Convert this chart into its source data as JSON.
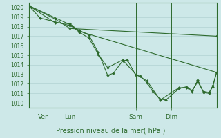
{
  "background_color": "#cde8e8",
  "grid_color": "#aacccc",
  "line_color": "#2d6a2d",
  "title": "Pression niveau de la mer( hPa )",
  "x_ticks_labels": [
    "Ven",
    "Lun",
    "Sam",
    "Dim"
  ],
  "x_ticks_pos": [
    0.08,
    0.22,
    0.57,
    0.76
  ],
  "ylim": [
    1009.5,
    1020.5
  ],
  "yticks": [
    1010,
    1011,
    1012,
    1013,
    1014,
    1015,
    1016,
    1017,
    1018,
    1019,
    1020
  ],
  "series": [
    {
      "x": [
        0.0,
        0.06,
        0.22,
        0.27,
        0.32,
        0.37,
        0.42,
        0.45,
        0.5,
        0.525,
        0.57,
        0.595,
        0.63,
        0.66,
        0.7,
        0.73,
        0.8,
        0.84,
        0.87,
        0.9,
        0.93,
        0.96,
        0.98,
        1.0
      ],
      "y": [
        1020.2,
        1018.9,
        1018.1,
        1017.6,
        1017.1,
        1015.3,
        1012.9,
        1013.1,
        1014.4,
        1014.5,
        1012.9,
        1012.8,
        1012.1,
        1011.2,
        1010.4,
        1010.3,
        1011.5,
        1011.7,
        1011.3,
        1012.2,
        1011.2,
        1011.1,
        1011.7,
        1013.2
      ]
    },
    {
      "x": [
        0.0,
        0.22,
        0.27,
        0.32,
        0.37,
        0.42,
        0.5,
        0.57,
        0.63,
        0.7,
        0.8,
        0.84,
        0.87,
        0.9,
        0.93,
        0.96,
        0.98,
        1.0
      ],
      "y": [
        1020.2,
        1018.2,
        1017.4,
        1016.8,
        1015.1,
        1013.7,
        1014.5,
        1013.0,
        1012.3,
        1010.3,
        1011.6,
        1011.6,
        1011.2,
        1012.4,
        1011.1,
        1011.0,
        1011.8,
        1013.2
      ]
    },
    {
      "x": [
        0.0,
        0.14,
        0.22,
        0.27,
        1.0
      ],
      "y": [
        1020.2,
        1018.4,
        1018.3,
        1017.5,
        1013.2
      ]
    },
    {
      "x": [
        0.0,
        0.14,
        0.22,
        1.0
      ],
      "y": [
        1020.2,
        1018.8,
        1017.8,
        1017.0
      ]
    }
  ]
}
